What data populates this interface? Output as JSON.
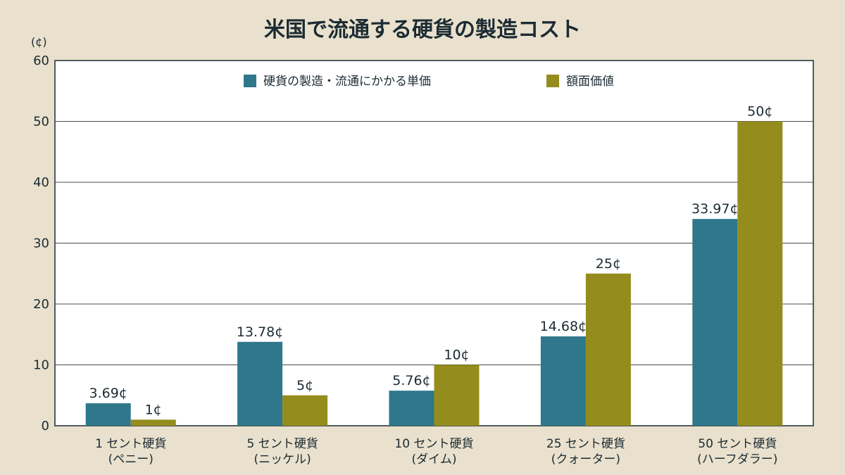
{
  "chart_data": {
    "type": "bar",
    "title": "米国で流通する硬貨の製造コスト",
    "unit_label": "(¢)",
    "ylim": [
      0,
      60
    ],
    "yticks": [
      0,
      10,
      20,
      30,
      40,
      50,
      60
    ],
    "grid": true,
    "legend_position": "top-center",
    "categories": [
      [
        "1 セント硬貨",
        "(ペニー)"
      ],
      [
        "5 セント硬貨",
        "(ニッケル)"
      ],
      [
        "10 セント硬貨",
        "(ダイム)"
      ],
      [
        "25 セント硬貨",
        "(クォーター)"
      ],
      [
        "50 セント硬貨",
        "(ハーフダラー)"
      ]
    ],
    "series": [
      {
        "name": "硬貨の製造・流通にかかる単価",
        "color": "#2f778b",
        "values": [
          3.69,
          13.78,
          5.76,
          14.68,
          33.97
        ],
        "labels": [
          "3.69¢",
          "13.78¢",
          "5.76¢",
          "14.68¢",
          "33.97¢"
        ]
      },
      {
        "name": "額面価値",
        "color": "#958c1e",
        "values": [
          1,
          5,
          10,
          25,
          50
        ],
        "labels": [
          "1¢",
          "5¢",
          "10¢",
          "25¢",
          "50¢"
        ]
      }
    ]
  }
}
